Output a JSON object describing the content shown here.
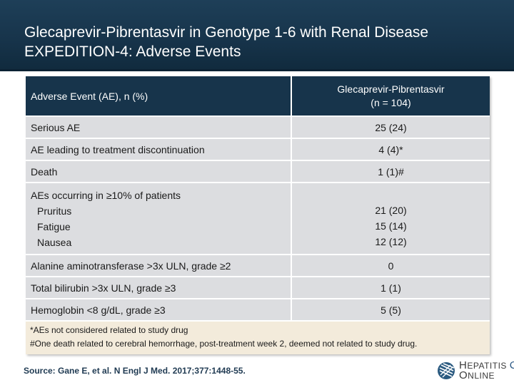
{
  "slide": {
    "title_line1": "Glecaprevir-Pibrentasvir in Genotype 1-6 with Renal Disease",
    "title_line2": "EXPEDITION-4: Adverse Events"
  },
  "table": {
    "col1_header": "Adverse Event (AE), n (%)",
    "col2_header_line1": "Glecaprevir-Pibrentasvir",
    "col2_header_line2": "(n = 104)",
    "rows": [
      {
        "label": "Serious AE",
        "value": "25 (24)"
      },
      {
        "label": "AE leading to treatment discontinuation",
        "value": "4 (4)*"
      },
      {
        "label": "Death",
        "value": "1 (1)#"
      }
    ],
    "aes_group": {
      "label": "AEs occurring in ≥10% of patients",
      "items": [
        {
          "label": "Pruritus",
          "value": "21 (20)"
        },
        {
          "label": "Fatigue",
          "value": "15 (14)"
        },
        {
          "label": "Nausea",
          "value": "12 (12)"
        }
      ]
    },
    "rows_after": [
      {
        "label": "Alanine aminotransferase >3x ULN, grade ≥2",
        "value": "0"
      },
      {
        "label": "Total bilirubin >3x ULN, grade ≥3",
        "value": "1 (1)"
      },
      {
        "label": "Hemoglobin <8 g/dL, grade ≥3",
        "value": "5 (5)"
      }
    ]
  },
  "footnotes": {
    "note1": "*AEs not considered related to study drug",
    "note2": "#One death related to cerebral hemorrhage, post-treatment week 2, deemed not related to study drug."
  },
  "source": "Source: Gane E, et al. N Engl J Med. 2017;377:1448-55.",
  "logo": {
    "line1_initial": "H",
    "line1_rest": "EPATITIS",
    "line1_c": "C",
    "line2_initial": "O",
    "line2_rest": "NLINE"
  },
  "colors": {
    "header_bg": "#17344b",
    "row_bg": "#dcdde0",
    "note_bg": "#f3ebdb",
    "source_text": "#1f3a52"
  }
}
